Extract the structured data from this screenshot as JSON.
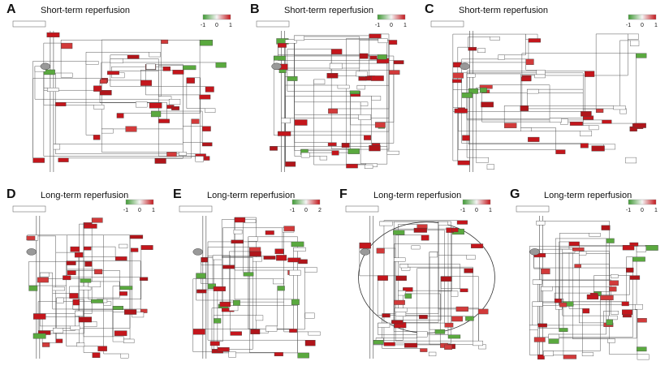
{
  "panels": [
    {
      "letter": "A",
      "title": "Short-term reperfusion",
      "scale": [
        "-1",
        "0",
        "1"
      ]
    },
    {
      "letter": "B",
      "title": "Short-term reperfusion",
      "scale": [
        "-1",
        "0",
        "1"
      ]
    },
    {
      "letter": "C",
      "title": "Short-term reperfusion",
      "scale": [
        "-1",
        "0",
        "1"
      ]
    },
    {
      "letter": "D",
      "title": "Long-term reperfusion",
      "scale": [
        "-1",
        "0",
        "1"
      ]
    },
    {
      "letter": "E",
      "title": "Long-term reperfusion",
      "scale": [
        "-1",
        "0",
        "2"
      ]
    },
    {
      "letter": "F",
      "title": "Long-term reperfusion",
      "scale": [
        "-1",
        "0",
        "1"
      ]
    },
    {
      "letter": "G",
      "title": "Long-term reperfusion",
      "scale": [
        "-1",
        "0",
        "1"
      ]
    }
  ]
}
